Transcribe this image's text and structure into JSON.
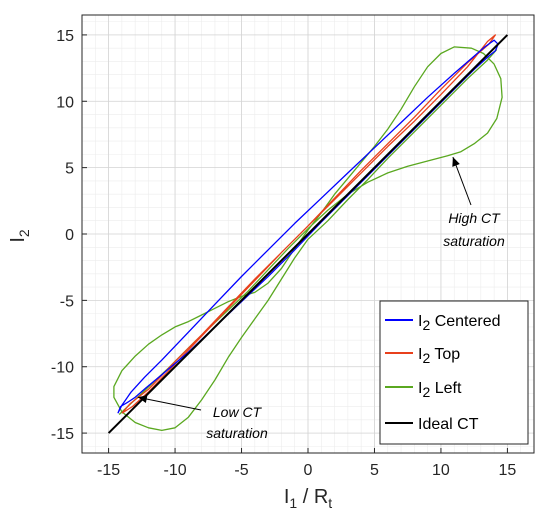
{
  "chart_data": {
    "type": "line",
    "xlabel_main": "I",
    "xlabel_sub": "1",
    "xlabel_rest": " / R",
    "xlabel_sub2": "t",
    "ylabel_main": "I",
    "ylabel_sub": "2",
    "xlim": [
      -17,
      17
    ],
    "ylim": [
      -16.5,
      16.5
    ],
    "xticks": [
      -15,
      -10,
      -5,
      0,
      5,
      10,
      15
    ],
    "yticks": [
      -15,
      -10,
      -5,
      0,
      5,
      10,
      15
    ],
    "grid": true,
    "legend_position": "bottom-right",
    "series": [
      {
        "name": "Centered",
        "legend_main": "I",
        "legend_sub": "2",
        "legend_rest": " Centered",
        "color": "#0000ff",
        "points": [
          [
            -14.3,
            -13.5
          ],
          [
            -14.1,
            -13.0
          ],
          [
            -13.6,
            -12.7
          ],
          [
            -13.0,
            -12.3
          ],
          [
            -12.2,
            -11.6
          ],
          [
            -11.0,
            -10.6
          ],
          [
            -9.0,
            -8.9
          ],
          [
            -7.0,
            -7.0
          ],
          [
            -5.0,
            -5.1
          ],
          [
            -3.0,
            -3.2
          ],
          [
            -1.0,
            -1.2
          ],
          [
            1.0,
            0.9
          ],
          [
            3.0,
            2.9
          ],
          [
            5.0,
            4.9
          ],
          [
            7.0,
            6.9
          ],
          [
            9.0,
            8.9
          ],
          [
            11.0,
            10.9
          ],
          [
            12.5,
            12.4
          ],
          [
            13.6,
            13.4
          ],
          [
            14.1,
            13.8
          ],
          [
            14.3,
            14.3
          ],
          [
            14.0,
            14.6
          ],
          [
            13.3,
            14.1
          ],
          [
            12.5,
            13.4
          ],
          [
            11.0,
            12.1
          ],
          [
            9.0,
            10.3
          ],
          [
            7.0,
            8.4
          ],
          [
            5.0,
            6.5
          ],
          [
            3.0,
            4.6
          ],
          [
            1.0,
            2.7
          ],
          [
            -1.0,
            0.8
          ],
          [
            -3.0,
            -1.2
          ],
          [
            -5.0,
            -3.2
          ],
          [
            -7.0,
            -5.3
          ],
          [
            -9.0,
            -7.4
          ],
          [
            -11.0,
            -9.5
          ],
          [
            -12.3,
            -10.8
          ],
          [
            -13.3,
            -11.9
          ],
          [
            -14.0,
            -12.9
          ],
          [
            -14.3,
            -13.5
          ]
        ]
      },
      {
        "name": "Top",
        "legend_main": "I",
        "legend_sub": "2",
        "legend_rest": " Top",
        "color": "#e8401c",
        "points": [
          [
            -14.0,
            -13.5
          ],
          [
            -13.2,
            -13.0
          ],
          [
            -12.0,
            -11.9
          ],
          [
            -10.0,
            -9.8
          ],
          [
            -8.0,
            -7.7
          ],
          [
            -6.0,
            -5.6
          ],
          [
            -4.0,
            -3.5
          ],
          [
            -2.0,
            -1.4
          ],
          [
            0.0,
            0.6
          ],
          [
            2.0,
            2.6
          ],
          [
            4.0,
            4.6
          ],
          [
            6.0,
            6.6
          ],
          [
            8.0,
            8.5
          ],
          [
            10.0,
            10.5
          ],
          [
            12.0,
            12.6
          ],
          [
            13.5,
            14.5
          ],
          [
            14.1,
            15.0
          ],
          [
            13.6,
            14.3
          ],
          [
            12.0,
            12.9
          ],
          [
            10.0,
            10.9
          ],
          [
            8.0,
            8.8
          ],
          [
            6.0,
            6.8
          ],
          [
            4.0,
            4.8
          ],
          [
            2.0,
            2.7
          ],
          [
            0.0,
            0.6
          ],
          [
            -2.0,
            -1.4
          ],
          [
            -4.0,
            -3.4
          ],
          [
            -6.0,
            -5.5
          ],
          [
            -8.0,
            -7.6
          ],
          [
            -10.0,
            -9.6
          ],
          [
            -12.0,
            -11.7
          ],
          [
            -13.4,
            -12.8
          ],
          [
            -14.0,
            -13.5
          ]
        ]
      },
      {
        "name": "Left",
        "legend_main": "I",
        "legend_sub": "2",
        "legend_rest": " Left",
        "color": "#5aa820",
        "points": [
          [
            -14.2,
            -13.6
          ],
          [
            -12.5,
            -12.0
          ],
          [
            -10.5,
            -10.1
          ],
          [
            -8.5,
            -8.1
          ],
          [
            -6.5,
            -6.2
          ],
          [
            -4.5,
            -4.3
          ],
          [
            -3.0,
            -2.7
          ],
          [
            -1.5,
            -1.1
          ],
          [
            0.0,
            0.4
          ],
          [
            1.5,
            1.8
          ],
          [
            3.0,
            3.0
          ],
          [
            4.5,
            3.9
          ],
          [
            6.0,
            4.6
          ],
          [
            7.5,
            5.1
          ],
          [
            9.0,
            5.5
          ],
          [
            10.5,
            5.9
          ],
          [
            11.5,
            6.2
          ],
          [
            12.5,
            6.8
          ],
          [
            13.5,
            7.6
          ],
          [
            14.2,
            8.7
          ],
          [
            14.6,
            10.3
          ],
          [
            14.5,
            11.7
          ],
          [
            14.0,
            12.8
          ],
          [
            13.2,
            13.6
          ],
          [
            12.3,
            14.0
          ],
          [
            11.0,
            14.1
          ],
          [
            10.0,
            13.6
          ],
          [
            9.0,
            12.6
          ],
          [
            8.0,
            11.1
          ],
          [
            7.0,
            9.4
          ],
          [
            6.0,
            7.9
          ],
          [
            5.0,
            6.6
          ],
          [
            4.0,
            5.4
          ],
          [
            3.0,
            4.2
          ],
          [
            2.0,
            3.0
          ],
          [
            1.0,
            1.6
          ],
          [
            0.0,
            0.3
          ],
          [
            -1.0,
            -1.1
          ],
          [
            -2.0,
            -2.6
          ],
          [
            -3.0,
            -3.7
          ],
          [
            -4.0,
            -4.4
          ],
          [
            -5.0,
            -4.7
          ],
          [
            -6.0,
            -5.1
          ],
          [
            -7.0,
            -5.6
          ],
          [
            -8.0,
            -6.1
          ],
          [
            -9.0,
            -6.6
          ],
          [
            -10.0,
            -7.0
          ],
          [
            -11.0,
            -7.6
          ],
          [
            -12.0,
            -8.3
          ],
          [
            -13.0,
            -9.2
          ],
          [
            -14.0,
            -10.3
          ],
          [
            -14.6,
            -11.5
          ],
          [
            -14.6,
            -12.3
          ],
          [
            -14.0,
            -13.4
          ],
          [
            -13.0,
            -14.2
          ],
          [
            -12.0,
            -14.6
          ],
          [
            -11.0,
            -14.8
          ],
          [
            -10.0,
            -14.6
          ],
          [
            -9.0,
            -13.8
          ],
          [
            -8.0,
            -12.5
          ],
          [
            -7.0,
            -11.0
          ],
          [
            -6.0,
            -9.3
          ],
          [
            -5.0,
            -7.8
          ],
          [
            -4.0,
            -6.4
          ],
          [
            -3.0,
            -5.0
          ],
          [
            -2.0,
            -3.4
          ],
          [
            -1.0,
            -1.8
          ],
          [
            0.0,
            -0.4
          ],
          [
            1.5,
            1.0
          ],
          [
            3.0,
            2.6
          ],
          [
            4.5,
            4.1
          ],
          [
            6.0,
            5.7
          ],
          [
            8.0,
            7.7
          ],
          [
            10.0,
            9.7
          ],
          [
            12.0,
            11.7
          ],
          [
            13.5,
            13.1
          ],
          [
            14.2,
            13.9
          ]
        ]
      },
      {
        "name": "Ideal CT",
        "legend_main": "Ideal CT",
        "legend_sub": "",
        "legend_rest": "",
        "color": "#000000",
        "points": [
          [
            -15,
            -15
          ],
          [
            15,
            15
          ]
        ]
      }
    ],
    "annotations": [
      {
        "line1": "High CT",
        "line2": "saturation",
        "target": [
          10.9,
          5.8
        ]
      },
      {
        "line1": "Low CT",
        "line2": "saturation",
        "target": [
          -12.8,
          -12.3
        ]
      }
    ]
  }
}
